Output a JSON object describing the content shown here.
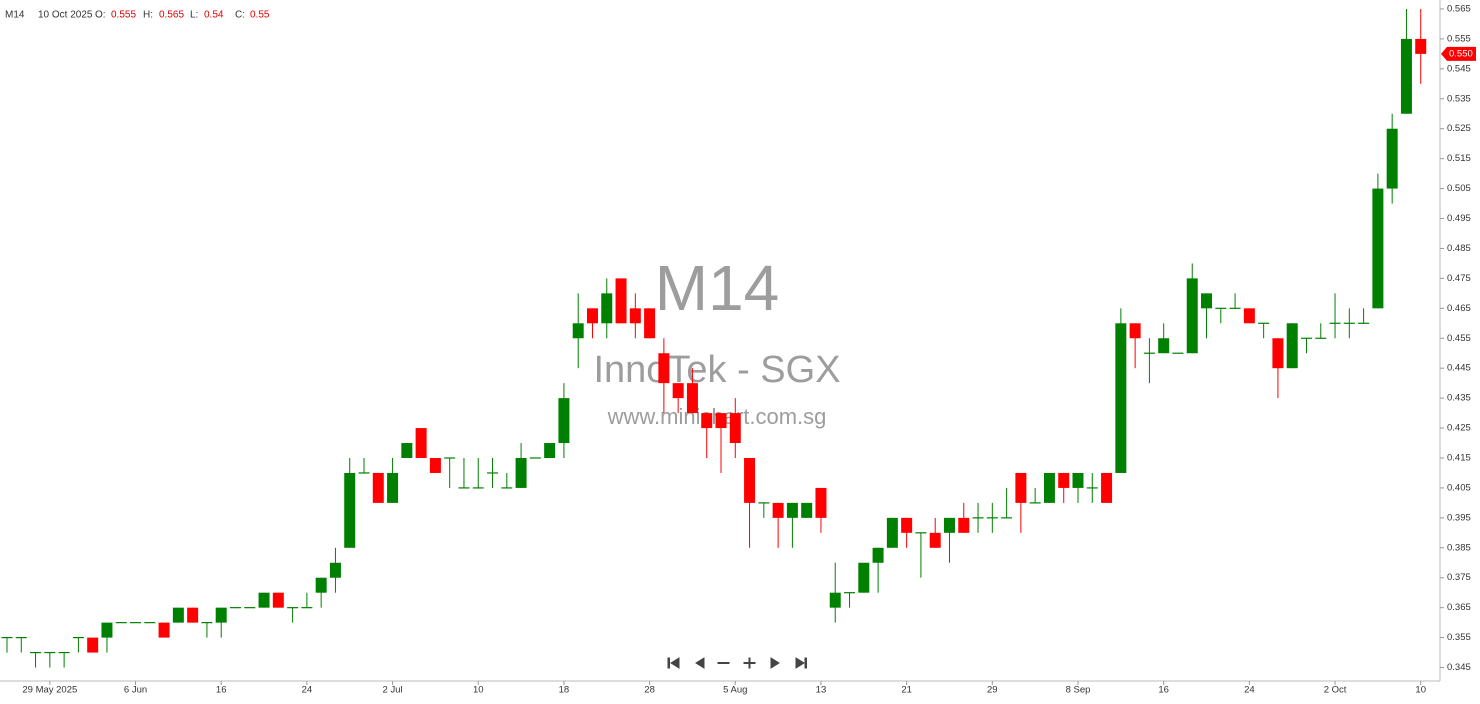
{
  "header": {
    "ticker": "M14",
    "date": "10 Oct 2025",
    "fields": [
      {
        "label": "O:",
        "value": 0.555
      },
      {
        "label": "H:",
        "value": 0.565
      },
      {
        "label": "L:",
        "value": 0.54
      },
      {
        "label": "C:",
        "value": 0.55
      }
    ]
  },
  "watermark": {
    "code": "M14",
    "name": "InnoTek - SGX",
    "site": "www.minichart.com.sg"
  },
  "chart_data": {
    "type": "candlestick",
    "categories": [
      null,
      null,
      null,
      "29 May 2025",
      null,
      null,
      null,
      null,
      null,
      "6 Jun",
      null,
      null,
      null,
      null,
      null,
      "16",
      null,
      null,
      null,
      null,
      null,
      "24",
      null,
      null,
      null,
      null,
      null,
      "2 Jul",
      null,
      null,
      null,
      null,
      null,
      "10",
      null,
      null,
      null,
      null,
      null,
      "18",
      null,
      null,
      null,
      null,
      null,
      "28",
      null,
      null,
      null,
      null,
      null,
      "5 Aug",
      null,
      null,
      null,
      null,
      null,
      "13",
      null,
      null,
      null,
      null,
      null,
      "21",
      null,
      null,
      null,
      null,
      null,
      "29",
      null,
      null,
      null,
      null,
      null,
      "8 Sep",
      null,
      null,
      null,
      null,
      null,
      "16",
      null,
      null,
      null,
      null,
      null,
      "24",
      null,
      null,
      null,
      null,
      null,
      "2 Oct",
      null,
      null,
      null,
      null,
      null,
      "10"
    ],
    "open": [
      0.355,
      0.355,
      0.35,
      0.35,
      0.35,
      0.355,
      0.355,
      0.355,
      0.36,
      0.36,
      0.36,
      0.36,
      0.36,
      0.365,
      0.36,
      0.36,
      0.365,
      0.365,
      0.365,
      0.37,
      0.365,
      0.365,
      0.37,
      0.375,
      0.385,
      0.41,
      0.41,
      0.4,
      0.415,
      0.425,
      0.415,
      0.415,
      0.405,
      0.405,
      0.41,
      0.405,
      0.405,
      0.415,
      0.415,
      0.42,
      0.455,
      0.465,
      0.46,
      0.475,
      0.465,
      0.465,
      0.45,
      0.44,
      0.44,
      0.43,
      0.43,
      0.43,
      0.415,
      0.4,
      0.4,
      0.395,
      0.395,
      0.405,
      0.365,
      0.37,
      0.37,
      0.38,
      0.385,
      0.395,
      0.39,
      0.39,
      0.39,
      0.395,
      0.395,
      0.395,
      0.395,
      0.41,
      0.4,
      0.4,
      0.41,
      0.405,
      0.405,
      0.41,
      0.41,
      0.46,
      0.45,
      0.45,
      0.45,
      0.45,
      0.465,
      0.465,
      0.465,
      0.465,
      0.46,
      0.455,
      0.445,
      0.455,
      0.455,
      0.46,
      0.46,
      0.46,
      0.465,
      0.505,
      0.53,
      0.555
    ],
    "high": [
      0.355,
      0.355,
      0.35,
      0.35,
      0.35,
      0.355,
      0.355,
      0.36,
      0.36,
      0.36,
      0.36,
      0.36,
      0.365,
      0.365,
      0.36,
      0.365,
      0.365,
      0.365,
      0.37,
      0.37,
      0.365,
      0.37,
      0.375,
      0.385,
      0.415,
      0.415,
      0.41,
      0.415,
      0.42,
      0.425,
      0.415,
      0.415,
      0.415,
      0.415,
      0.415,
      0.41,
      0.42,
      0.415,
      0.42,
      0.44,
      0.47,
      0.465,
      0.475,
      0.475,
      0.47,
      0.465,
      0.455,
      0.44,
      0.445,
      0.43,
      0.43,
      0.435,
      0.415,
      0.4,
      0.4,
      0.4,
      0.4,
      0.405,
      0.38,
      0.37,
      0.38,
      0.385,
      0.395,
      0.395,
      0.39,
      0.395,
      0.395,
      0.4,
      0.4,
      0.4,
      0.405,
      0.41,
      0.405,
      0.41,
      0.41,
      0.41,
      0.41,
      0.41,
      0.465,
      0.46,
      0.455,
      0.46,
      0.45,
      0.48,
      0.47,
      0.465,
      0.47,
      0.465,
      0.46,
      0.455,
      0.46,
      0.455,
      0.46,
      0.47,
      0.465,
      0.465,
      0.51,
      0.53,
      0.565,
      0.565
    ],
    "low": [
      0.35,
      0.35,
      0.345,
      0.345,
      0.345,
      0.35,
      0.35,
      0.35,
      0.36,
      0.36,
      0.36,
      0.355,
      0.36,
      0.36,
      0.355,
      0.355,
      0.365,
      0.365,
      0.365,
      0.365,
      0.36,
      0.365,
      0.365,
      0.37,
      0.385,
      0.41,
      0.4,
      0.4,
      0.415,
      0.415,
      0.41,
      0.405,
      0.405,
      0.405,
      0.405,
      0.405,
      0.405,
      0.415,
      0.415,
      0.415,
      0.445,
      0.455,
      0.455,
      0.46,
      0.455,
      0.455,
      0.43,
      0.43,
      0.43,
      0.415,
      0.41,
      0.415,
      0.385,
      0.395,
      0.385,
      0.385,
      0.395,
      0.39,
      0.36,
      0.365,
      0.37,
      0.37,
      0.385,
      0.385,
      0.375,
      0.385,
      0.38,
      0.39,
      0.39,
      0.39,
      0.395,
      0.39,
      0.4,
      0.4,
      0.4,
      0.4,
      0.4,
      0.4,
      0.41,
      0.445,
      0.44,
      0.45,
      0.45,
      0.45,
      0.455,
      0.46,
      0.465,
      0.46,
      0.455,
      0.435,
      0.445,
      0.45,
      0.455,
      0.455,
      0.455,
      0.46,
      0.465,
      0.5,
      0.53,
      0.54
    ],
    "close": [
      0.355,
      0.355,
      0.35,
      0.35,
      0.35,
      0.355,
      0.35,
      0.36,
      0.36,
      0.36,
      0.36,
      0.355,
      0.365,
      0.36,
      0.36,
      0.365,
      0.365,
      0.365,
      0.37,
      0.365,
      0.365,
      0.365,
      0.375,
      0.38,
      0.41,
      0.41,
      0.4,
      0.41,
      0.42,
      0.415,
      0.41,
      0.415,
      0.405,
      0.405,
      0.41,
      0.405,
      0.415,
      0.415,
      0.42,
      0.435,
      0.46,
      0.46,
      0.47,
      0.46,
      0.46,
      0.455,
      0.44,
      0.435,
      0.43,
      0.425,
      0.425,
      0.42,
      0.4,
      0.4,
      0.395,
      0.4,
      0.4,
      0.395,
      0.37,
      0.37,
      0.38,
      0.385,
      0.395,
      0.39,
      0.39,
      0.385,
      0.395,
      0.39,
      0.395,
      0.395,
      0.395,
      0.4,
      0.4,
      0.41,
      0.405,
      0.41,
      0.405,
      0.4,
      0.46,
      0.455,
      0.45,
      0.455,
      0.45,
      0.475,
      0.47,
      0.465,
      0.465,
      0.46,
      0.46,
      0.445,
      0.46,
      0.455,
      0.455,
      0.46,
      0.46,
      0.46,
      0.505,
      0.525,
      0.555,
      0.55
    ],
    "up_color": "#008000",
    "down_color": "#ff0000",
    "ylim": [
      0.3405,
      0.568
    ],
    "yticks": [
      0.345,
      0.355,
      0.365,
      0.375,
      0.385,
      0.395,
      0.405,
      0.415,
      0.425,
      0.435,
      0.445,
      0.455,
      0.465,
      0.475,
      0.485,
      0.495,
      0.505,
      0.515,
      0.525,
      0.535,
      0.545,
      0.555,
      0.565
    ],
    "last_price": {
      "value": 0.55,
      "label": "0.550"
    },
    "grid": false
  }
}
